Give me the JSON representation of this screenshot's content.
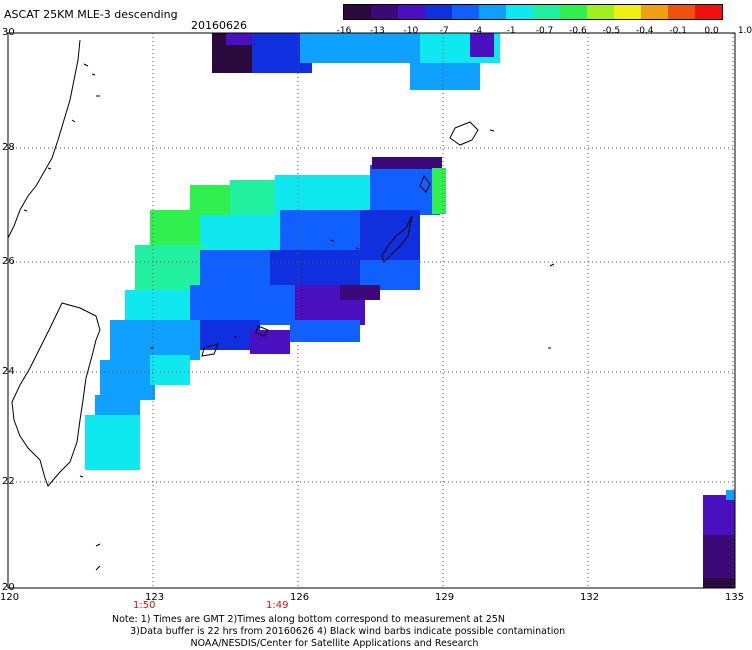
{
  "header": {
    "title": "ASCAT 25KM MLE-3 descending",
    "date": "20160626"
  },
  "colorbar": {
    "labels": [
      "-16",
      "-13",
      "-10",
      "-7",
      "-4",
      "-1",
      "-0.7",
      "-0.6",
      "-0.5",
      "-0.4",
      "-0.1",
      "0.0",
      "1.0"
    ],
    "colors": [
      "#2a0a3c",
      "#3c0a78",
      "#4a10c0",
      "#1030e0",
      "#1060ff",
      "#10a0ff",
      "#10e8f0",
      "#20f0a0",
      "#30f050",
      "#a0f020",
      "#f0f010",
      "#f0a010",
      "#f05010",
      "#f01010"
    ]
  },
  "axes": {
    "lon_labels": [
      "120",
      "123",
      "126",
      "129",
      "132",
      "135"
    ],
    "lat_labels": [
      "30",
      "28",
      "26",
      "24",
      "22",
      "20"
    ]
  },
  "time_labels": [
    "1:50",
    "1:49"
  ],
  "notes": [
    "Note: 1) Times are GMT 2)Times along bottom correspond to measurement at 25N",
    "3)Data buffer is 22 hrs from 20160626 4) Black wind barbs indicate possible contamination",
    "NOAA/NESDIS/Center for Satellite Applications and Research"
  ]
}
